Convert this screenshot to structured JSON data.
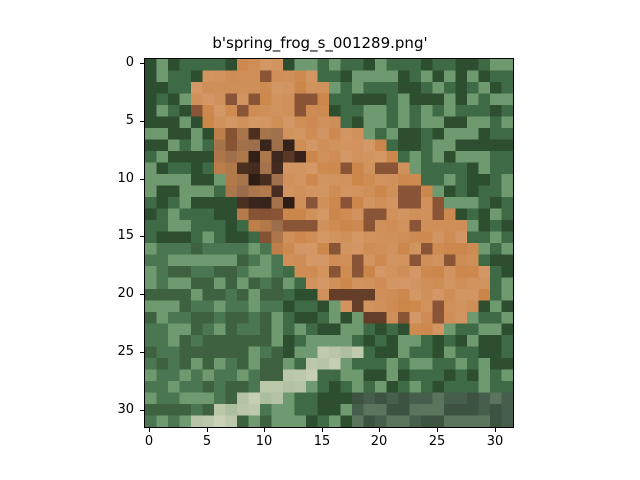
{
  "figure": {
    "title": "b'spring_frog_s_001289.png'",
    "image_subject": "frog",
    "x_ticks": [
      "0",
      "5",
      "10",
      "15",
      "20",
      "25",
      "30"
    ],
    "y_ticks": [
      "0",
      "5",
      "10",
      "15",
      "20",
      "25",
      "30"
    ]
  },
  "palette": {
    "background_dark_green": "#2d4f2f",
    "mid_green": "#3e6b46",
    "light_green": "#6f9a70",
    "frog_orange": "#c98243",
    "frog_light": "#d9a277",
    "frog_brown": "#8a5536",
    "frog_dark": "#2a1b16",
    "stem_light": "#c9d0b4"
  }
}
